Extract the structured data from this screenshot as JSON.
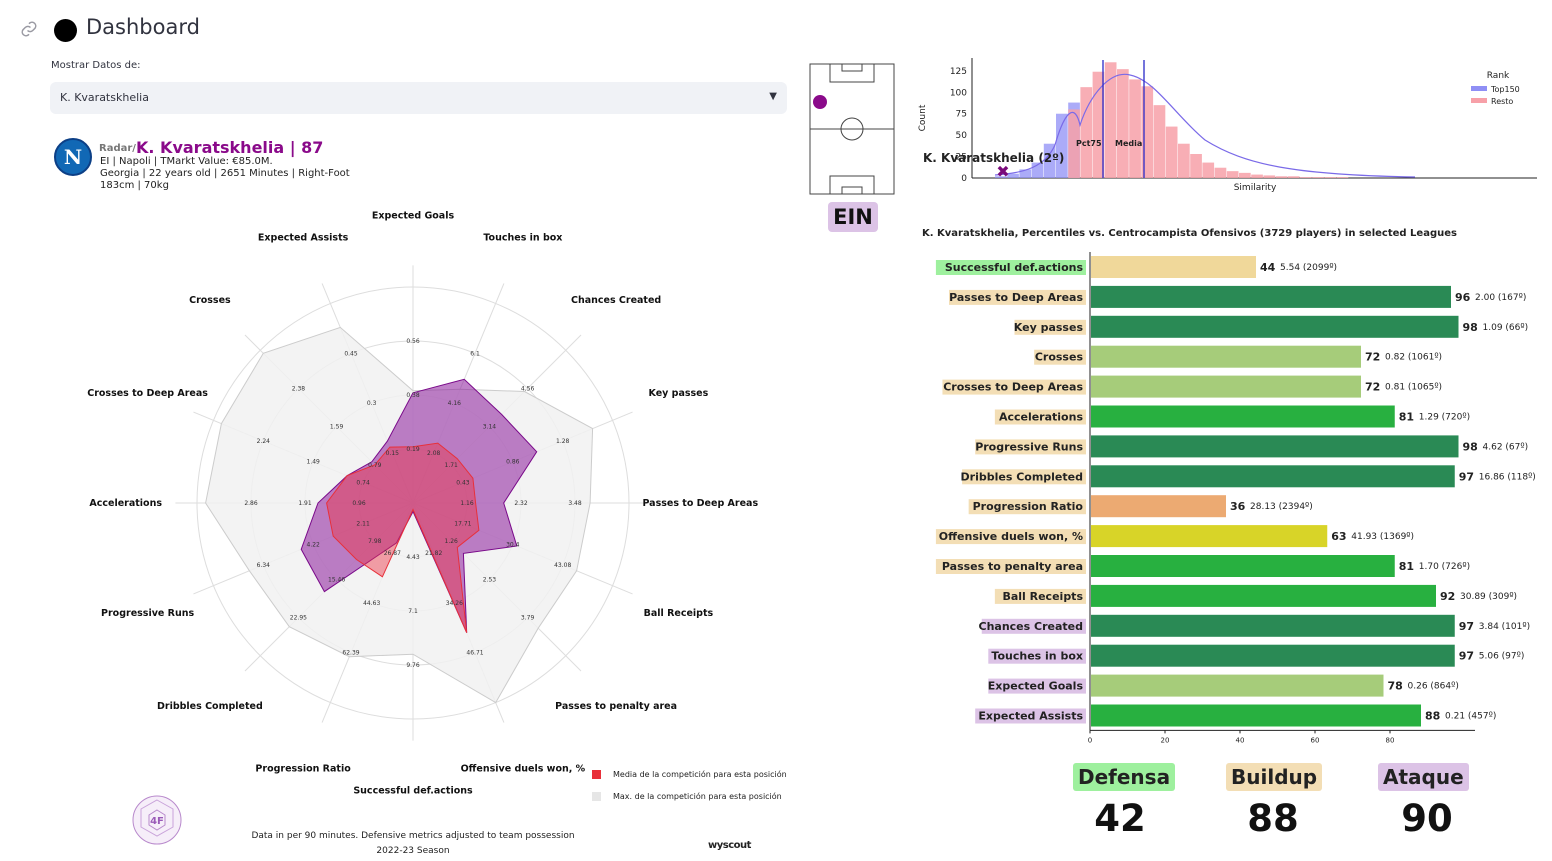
{
  "header": {
    "title": "Dashboard"
  },
  "selector": {
    "label": "Mostrar Datos de:",
    "value": "K. Kvaratskhelia"
  },
  "player": {
    "radar_prefix": "Radar/",
    "name_line": "K. Kvaratskhelia | 87",
    "line1": "EI  | Napoli | TMarkt Value: €85.0M.",
    "line2": "Georgia | 22 years old | 2651 Minutes | Right-Foot",
    "line3": "183cm | 70kg",
    "club_badge_letter": "N"
  },
  "position_badge": "EIN",
  "radar": {
    "footer_line1": "Data in per 90 minutes. Defensive metrics adjusted to team possession",
    "footer_line2": "2022-23 Season",
    "source": "wyscout",
    "logo_text": "4F",
    "legend": [
      {
        "label": "Media de la competición para esta posición",
        "color": "#e8303a"
      },
      {
        "label": "Max. de la competición para esta posición",
        "color": "#e6e6e6"
      }
    ]
  },
  "chart_data": [
    {
      "type": "radar",
      "title": "",
      "axes": [
        "Expected Goals",
        "Touches in box",
        "Chances Created",
        "Key passes",
        "Passes to Deep Areas",
        "Ball Receipts",
        "Passes to penalty area",
        "Offensive duels won, %",
        "Successful def.actions",
        "Progression Ratio",
        "Dribbles Completed",
        "Progressive Runs",
        "Accelerations",
        "Crosses to Deep Areas",
        "Crosses",
        "Expected Assists"
      ],
      "ring_labels": [
        [
          "0.19",
          "0.38",
          "0.56"
        ],
        [
          "2.08",
          "4.16",
          "6.1"
        ],
        [
          "1.71",
          "3.14",
          "4.56"
        ],
        [
          "0.43",
          "0.86",
          "1.28"
        ],
        [
          "1.16",
          "2.32",
          "3.48"
        ],
        [
          "17.71",
          "30.4",
          "43.08"
        ],
        [
          "1.26",
          "2.53",
          "3.79"
        ],
        [
          "21.82",
          "34.26",
          "46.71"
        ],
        [
          "4.43",
          "7.1",
          "9.76"
        ],
        [
          "26.87",
          "44.63",
          "62.39"
        ],
        [
          "7.98",
          "15.46",
          "22.95"
        ],
        [
          "2.11",
          "4.22",
          "6.34"
        ],
        [
          "0.96",
          "1.91",
          "2.86"
        ],
        [
          "0.74",
          "1.49",
          "2.24"
        ],
        [
          "0.79",
          "1.59",
          "2.38"
        ],
        [
          "0.15",
          "0.3",
          "0.45"
        ]
      ],
      "series": [
        {
          "name": "K. Kvaratskhelia",
          "color": "#8a1a9a",
          "values": [
            0.51,
            0.62,
            0.58,
            0.62,
            0.42,
            0.52,
            0.33,
            0.65,
            0.04,
            0.2,
            0.58,
            0.56,
            0.44,
            0.33,
            0.27,
            0.31
          ]
        },
        {
          "name": "Media de la competición para esta posición",
          "color": "#e8303a",
          "values": [
            0.26,
            0.3,
            0.29,
            0.3,
            0.29,
            0.33,
            0.29,
            0.65,
            0.03,
            0.37,
            0.37,
            0.4,
            0.4,
            0.33,
            0.25,
            0.28
          ]
        },
        {
          "name": "Max. de la competición para esta posición",
          "color": "#dcdcdc",
          "values": [
            0.52,
            0.57,
            0.73,
            0.9,
            0.82,
            0.82,
            0.82,
            1.0,
            0.7,
            0.77,
            0.81,
            0.82,
            0.96,
            0.96,
            0.98,
            0.88
          ]
        }
      ]
    },
    {
      "type": "histogram",
      "title": "",
      "xlabel": "Similarity",
      "ylabel": "Count",
      "yticks": [
        "0",
        "25",
        "50",
        "75",
        "100",
        "125"
      ],
      "ylim": [
        0,
        140
      ],
      "legend_title": "Rank",
      "legend": [
        {
          "name": "Top150",
          "color": "#8f8ff5"
        },
        {
          "name": "Resto",
          "color": "#f7a0a8"
        }
      ],
      "player_label": "K. Kvaratskhelia (2º)",
      "annotations": [
        "Pct75",
        "Media"
      ],
      "bins_top150": [
        2,
        5,
        10,
        18,
        40,
        75,
        88
      ],
      "bins_resto": [
        0,
        0,
        0,
        0,
        0,
        0,
        80,
        106,
        124,
        135,
        127,
        115,
        107,
        85,
        60,
        40,
        28,
        18,
        12,
        8,
        6,
        4,
        3,
        2,
        2,
        1,
        1,
        1,
        1,
        0,
        0,
        0
      ]
    },
    {
      "type": "bar",
      "orientation": "horizontal",
      "title": "K. Kvaratskhelia, Percentiles vs. Centrocampista Ofensivos (3729 players) in selected Leagues",
      "xticks": [
        "0",
        "20",
        "40",
        "60",
        "80"
      ],
      "xlim": [
        0,
        105
      ],
      "categories": [
        "Successful def.actions",
        "Passes to Deep Areas",
        "Key passes",
        "Crosses",
        "Crosses to Deep Areas",
        "Accelerations",
        "Progressive Runs",
        "Dribbles Completed",
        "Progression Ratio",
        "Offensive duels won, %",
        "Passes to penalty area",
        "Ball Receipts",
        "Chances Created",
        "Touches in box",
        "Expected Goals",
        "Expected Assists"
      ],
      "values": [
        44,
        96,
        98,
        72,
        72,
        81,
        98,
        97,
        36,
        63,
        81,
        92,
        97,
        97,
        78,
        88
      ],
      "details": [
        "5.54 (2099º)",
        "2.00 (167º)",
        "1.09 (66º)",
        "0.82 (1061º)",
        "0.81 (1065º)",
        "1.29 (720º)",
        "4.62 (67º)",
        "16.86 (118º)",
        "28.13 (2394º)",
        "41.93 (1369º)",
        "1.70 (726º)",
        "30.89 (309º)",
        "3.84 (101º)",
        "5.06 (97º)",
        "0.26 (864º)",
        "0.21 (457º)"
      ],
      "bar_colors": [
        "#f0d89a",
        "#2a8a55",
        "#2a8a55",
        "#a6cc7a",
        "#a6cc7a",
        "#28b040",
        "#2a8a55",
        "#2a8a55",
        "#ecaa72",
        "#d8d428",
        "#28b040",
        "#28b040",
        "#2a8a55",
        "#2a8a55",
        "#a6cc7a",
        "#28b040"
      ],
      "label_bg": [
        "#9ef09e",
        "#f3deb5",
        "#f3deb5",
        "#f3deb5",
        "#f3deb5",
        "#f3deb5",
        "#f3deb5",
        "#f3deb5",
        "#f3deb5",
        "#f3deb5",
        "#f3deb5",
        "#f3deb5",
        "#dcc3e6",
        "#dcc3e6",
        "#dcc3e6",
        "#dcc3e6"
      ]
    }
  ],
  "scores": [
    {
      "label": "Defensa",
      "value": "42",
      "color": "#9ef09e"
    },
    {
      "label": "Buildup",
      "value": "88",
      "color": "#f3deb5"
    },
    {
      "label": "Ataque",
      "value": "90",
      "color": "#dcc3e6"
    }
  ]
}
